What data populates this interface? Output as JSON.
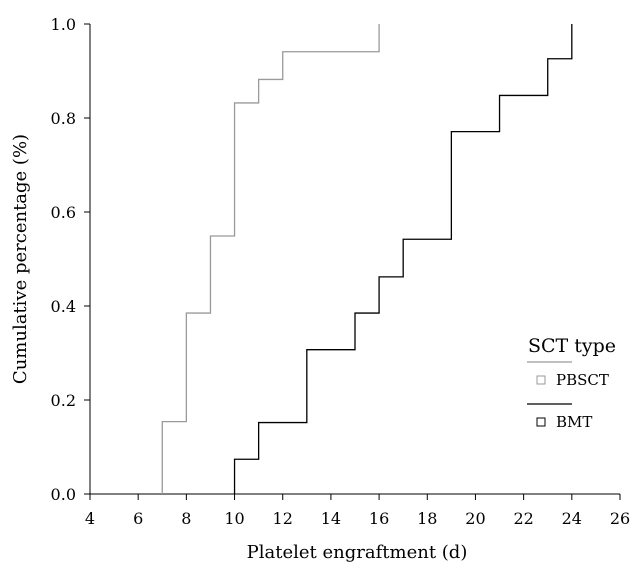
{
  "chart_data": {
    "type": "line",
    "subtype": "step",
    "title": "",
    "xlabel": "Platelet engraftment (d)",
    "ylabel": "Cumulative percentage (%)",
    "xlim": [
      4,
      26
    ],
    "ylim": [
      0,
      1
    ],
    "xticks": [
      4,
      6,
      8,
      10,
      12,
      14,
      16,
      18,
      20,
      22,
      24,
      26
    ],
    "yticks": [
      0.0,
      0.2,
      0.4,
      0.6,
      0.8,
      1.0
    ],
    "ytick_labels": [
      "0.0",
      "0.2",
      "0.4",
      "0.6",
      "0.8",
      "1.0"
    ],
    "grid": false,
    "legend": {
      "title": "SCT type",
      "position": "right"
    },
    "series": [
      {
        "name": "PBSCT",
        "color": "#9a9a9a",
        "x": [
          7,
          8,
          9,
          10,
          11,
          12,
          16
        ],
        "y": [
          0.154,
          0.385,
          0.549,
          0.832,
          0.882,
          0.941,
          1.0
        ]
      },
      {
        "name": "BMT",
        "color": "#000000",
        "x": [
          10,
          11,
          13,
          15,
          16,
          17,
          19,
          21,
          23,
          24
        ],
        "y": [
          0.074,
          0.152,
          0.307,
          0.385,
          0.462,
          0.542,
          0.771,
          0.848,
          0.926,
          1.0
        ]
      }
    ]
  }
}
